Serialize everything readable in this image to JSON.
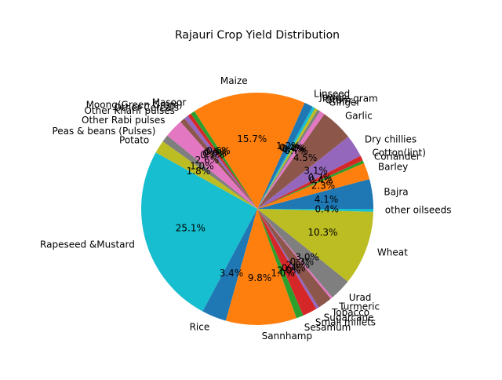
{
  "chart_data": {
    "type": "pie",
    "title": "Rajauri Crop Yield Distribution",
    "start_angle_deg": 0,
    "counterclock": true,
    "slices": [
      {
        "label": "Bajra",
        "pct": "4.1%",
        "value": 4.1
      },
      {
        "label": "Barley",
        "pct": "2.3%",
        "value": 2.3
      },
      {
        "label": "Coriander",
        "pct": "0.4%",
        "value": 0.4
      },
      {
        "label": "Cotton(lint)",
        "pct": "0.7%",
        "value": 0.7
      },
      {
        "label": "Dry chillies",
        "pct": "3.1%",
        "value": 3.1
      },
      {
        "label": "Garlic",
        "pct": "4.5%",
        "value": 4.5
      },
      {
        "label": "Ginger",
        "pct": "0.7%",
        "value": 0.7
      },
      {
        "label": "Gram",
        "pct": "0.4%",
        "value": 0.4
      },
      {
        "label": "Horse-gram",
        "pct": "0.4%",
        "value": 0.4
      },
      {
        "label": "Jowar",
        "pct": "0.4%",
        "value": 0.4
      },
      {
        "label": "Linseed",
        "pct": "1.2%",
        "value": 1.2
      },
      {
        "label": "Maize",
        "pct": "15.7%",
        "value": 15.7
      },
      {
        "label": "Masoor",
        "pct": "0.6%",
        "value": 0.6
      },
      {
        "label": "Moong(Green Gram)",
        "pct": "0.5%",
        "value": 0.5
      },
      {
        "label": "Other Cereals",
        "pct": "0.6%",
        "value": 0.6
      },
      {
        "label": "Other Kharif pulses",
        "pct": "0.7%",
        "value": 0.7
      },
      {
        "label": "Other Rabi pulses",
        "pct": "2.6%",
        "value": 2.6
      },
      {
        "label": "Peas & beans (Pulses)",
        "pct": "1.0%",
        "value": 1.0
      },
      {
        "label": "Potato",
        "pct": "1.8%",
        "value": 1.8
      },
      {
        "label": "Rapeseed &Mustard",
        "pct": "25.1%",
        "value": 25.1
      },
      {
        "label": "Rice",
        "pct": "3.4%",
        "value": 3.4
      },
      {
        "label": "Sannhamp",
        "pct": "9.8%",
        "value": 9.8
      },
      {
        "label": "Sesamum",
        "pct": "1.0%",
        "value": 1.0
      },
      {
        "label": "Small millets",
        "pct": "2.0%",
        "value": 2.0
      },
      {
        "label": "Sugarcane",
        "pct": "0.4%",
        "value": 0.4
      },
      {
        "label": "Tobacco",
        "pct": "2.0%",
        "value": 2.0
      },
      {
        "label": "Turmeric",
        "pct": "0.3%",
        "value": 0.3
      },
      {
        "label": "Urad",
        "pct": "3.0%",
        "value": 3.0
      },
      {
        "label": "Wheat",
        "pct": "10.3%",
        "value": 10.3
      },
      {
        "label": "other oilseeds",
        "pct": "0.4%",
        "value": 0.4
      }
    ],
    "colors": [
      "#1f77b4",
      "#ff7f0e",
      "#2ca02c",
      "#d62728",
      "#9467bd",
      "#8c564b",
      "#e377c2",
      "#7f7f7f",
      "#bcbd22",
      "#17becf"
    ]
  }
}
